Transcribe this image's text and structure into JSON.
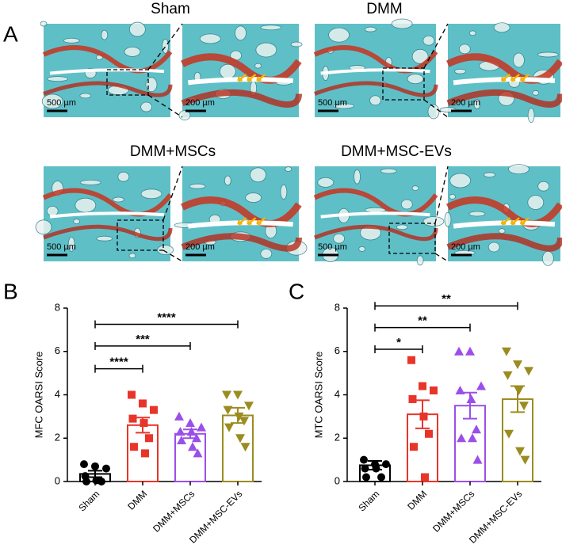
{
  "panel_a": {
    "label": "A",
    "images": [
      {
        "title": "Sham",
        "scale_bars": [
          "500 µm",
          "200 µm"
        ]
      },
      {
        "title": "DMM",
        "scale_bars": [
          "500 µm",
          "200 µm"
        ]
      },
      {
        "title": "DMM+MSCs",
        "scale_bars": [
          "500 µm",
          "200 µm"
        ]
      },
      {
        "title": "DMM+MSC-EVs",
        "scale_bars": [
          "500 µm",
          "200 µm"
        ]
      }
    ]
  },
  "chart_data": [
    {
      "type": "bar",
      "panel_label": "B",
      "y_label": "MFC OARSI Score",
      "categories": [
        "Sham",
        "DMM",
        "DMM+MSCs",
        "DMM+MSC-EVs"
      ],
      "colors": [
        "#000000",
        "#e8352a",
        "#9b4fe8",
        "#9b8c20"
      ],
      "markers": [
        "circle",
        "square",
        "triangle",
        "triangle-down"
      ],
      "values": [
        0.35,
        2.6,
        2.2,
        3.05
      ],
      "errors": [
        0.15,
        0.35,
        0.2,
        0.35
      ],
      "points": [
        [
          0.8,
          0.7,
          0.6,
          0.25,
          0.05,
          0.0,
          0.0
        ],
        [
          4.0,
          3.6,
          3.3,
          2.9,
          2.7,
          2.0,
          1.6,
          1.3
        ],
        [
          3.0,
          2.7,
          2.5,
          2.3,
          2.3,
          2.0,
          1.9,
          1.6,
          1.3
        ],
        [
          4.0,
          4.0,
          3.5,
          3.3,
          3.0,
          2.8,
          2.5,
          2.0,
          1.6
        ]
      ],
      "ylim": [
        0,
        8
      ],
      "yticks": [
        0,
        2,
        4,
        6,
        8
      ],
      "significance": [
        {
          "from": 0,
          "to": 1,
          "y": 5.2,
          "label": "****"
        },
        {
          "from": 0,
          "to": 2,
          "y": 6.25,
          "label": "***"
        },
        {
          "from": 0,
          "to": 3,
          "y": 7.25,
          "label": "****"
        }
      ]
    },
    {
      "type": "bar",
      "panel_label": "C",
      "y_label": "MTC OARSI Score",
      "categories": [
        "Sham",
        "DMM",
        "DMM+MSCs",
        "DMM+MSC-EVs"
      ],
      "colors": [
        "#000000",
        "#e8352a",
        "#9b4fe8",
        "#9b8c20"
      ],
      "markers": [
        "circle",
        "square",
        "triangle",
        "triangle-down"
      ],
      "values": [
        0.75,
        3.1,
        3.5,
        3.8
      ],
      "errors": [
        0.2,
        0.65,
        0.6,
        0.6
      ],
      "points": [
        [
          1.0,
          0.8,
          0.8,
          0.6,
          0.6,
          0.2,
          0.2
        ],
        [
          5.6,
          4.4,
          4.2,
          3.8,
          3.0,
          2.2,
          1.6,
          0.2
        ],
        [
          6.0,
          6.0,
          4.4,
          4.2,
          3.8,
          2.4,
          2.0,
          2.0,
          1.0
        ],
        [
          6.0,
          5.4,
          5.1,
          4.9,
          4.2,
          3.5,
          2.2,
          1.4,
          1.0
        ]
      ],
      "ylim": [
        0,
        8
      ],
      "yticks": [
        0,
        2,
        4,
        6,
        8
      ],
      "significance": [
        {
          "from": 0,
          "to": 1,
          "y": 6.1,
          "label": "*"
        },
        {
          "from": 0,
          "to": 2,
          "y": 7.1,
          "label": "**"
        },
        {
          "from": 0,
          "to": 3,
          "y": 8.1,
          "label": "**"
        }
      ]
    }
  ]
}
